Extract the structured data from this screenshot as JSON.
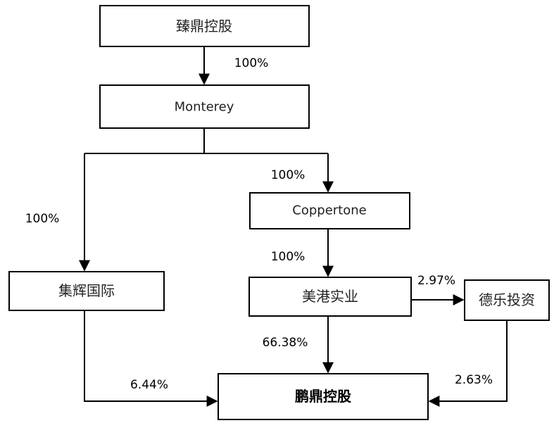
{
  "nodes": {
    "zhending": "臻鼎控股",
    "monterey": "Monterey",
    "coppertone": "Coppertone",
    "jihui": "集辉国际",
    "meigang": "美港实业",
    "dele": "德乐投资",
    "pengding": "鹏鼎控股"
  },
  "edges": {
    "zhending_monterey": "100%",
    "monterey_coppertone": "100%",
    "monterey_jihui": "100%",
    "coppertone_meigang": "100%",
    "meigang_dele": "2.97%",
    "meigang_pengding": "66.38%",
    "jihui_pengding": "6.44%",
    "dele_pengding": "2.63%"
  }
}
